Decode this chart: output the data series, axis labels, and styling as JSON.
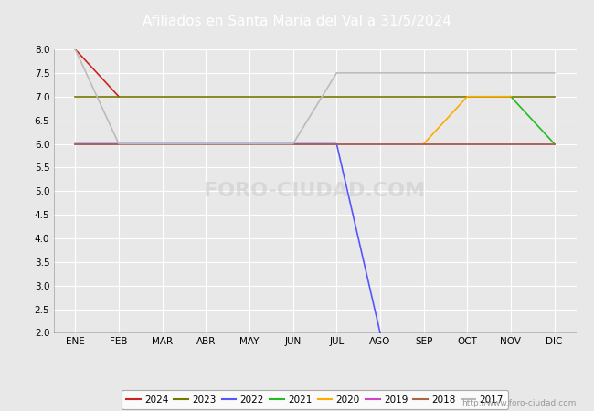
{
  "title": "Afiliados en Santa María del Val a 31/5/2024",
  "header_bg": "#4a7fc1",
  "plot_bg": "#e8e8e8",
  "fig_bg": "#e8e8e8",
  "ylim": [
    2.0,
    8.0
  ],
  "yticks": [
    2.0,
    2.5,
    3.0,
    3.5,
    4.0,
    4.5,
    5.0,
    5.5,
    6.0,
    6.5,
    7.0,
    7.5,
    8.0
  ],
  "months": [
    "ENE",
    "FEB",
    "MAR",
    "ABR",
    "MAY",
    "JUN",
    "JUL",
    "AGO",
    "SEP",
    "OCT",
    "NOV",
    "DIC"
  ],
  "watermark": "http://www.foro-ciudad.com",
  "series": {
    "2024": {
      "color": "#cc2222",
      "x": [
        1,
        2
      ],
      "y": [
        8,
        7
      ]
    },
    "2023": {
      "color": "#777700",
      "x": [
        1,
        2,
        3,
        4,
        5,
        6,
        7,
        8,
        9,
        10,
        11,
        12
      ],
      "y": [
        7,
        7,
        7,
        7,
        7,
        7,
        7,
        7,
        7,
        7,
        7,
        7
      ]
    },
    "2022": {
      "color": "#5555ff",
      "x": [
        1,
        2,
        3,
        4,
        5,
        6,
        7,
        8
      ],
      "y": [
        6,
        6,
        6,
        6,
        6,
        6,
        6,
        2
      ]
    },
    "2021": {
      "color": "#22bb22",
      "x": [
        11,
        12
      ],
      "y": [
        7,
        6
      ]
    },
    "2020": {
      "color": "#ffaa00",
      "x": [
        9,
        10,
        11
      ],
      "y": [
        6,
        7,
        7
      ]
    },
    "2019": {
      "color": "#cc44cc",
      "x": [
        1,
        2,
        3,
        4,
        5,
        6,
        7,
        8,
        9,
        10,
        11,
        12
      ],
      "y": [
        6,
        6,
        6,
        6,
        6,
        6,
        6,
        6,
        6,
        6,
        6,
        6
      ]
    },
    "2018": {
      "color": "#aa6644",
      "x": [
        1,
        2,
        3,
        4,
        5,
        6,
        7,
        8,
        9,
        10,
        11,
        12
      ],
      "y": [
        6,
        6,
        6,
        6,
        6,
        6,
        6,
        6,
        6,
        6,
        6,
        6
      ]
    },
    "2017": {
      "color": "#bbbbbb",
      "x": [
        1,
        2,
        3,
        4,
        5,
        6,
        7,
        8,
        9,
        10,
        11,
        12
      ],
      "y": [
        8,
        6,
        6,
        6,
        6,
        6,
        7.5,
        7.5,
        7.5,
        7.5,
        7.5,
        7.5
      ]
    }
  },
  "legend_order": [
    "2024",
    "2023",
    "2022",
    "2021",
    "2020",
    "2019",
    "2018",
    "2017"
  ]
}
